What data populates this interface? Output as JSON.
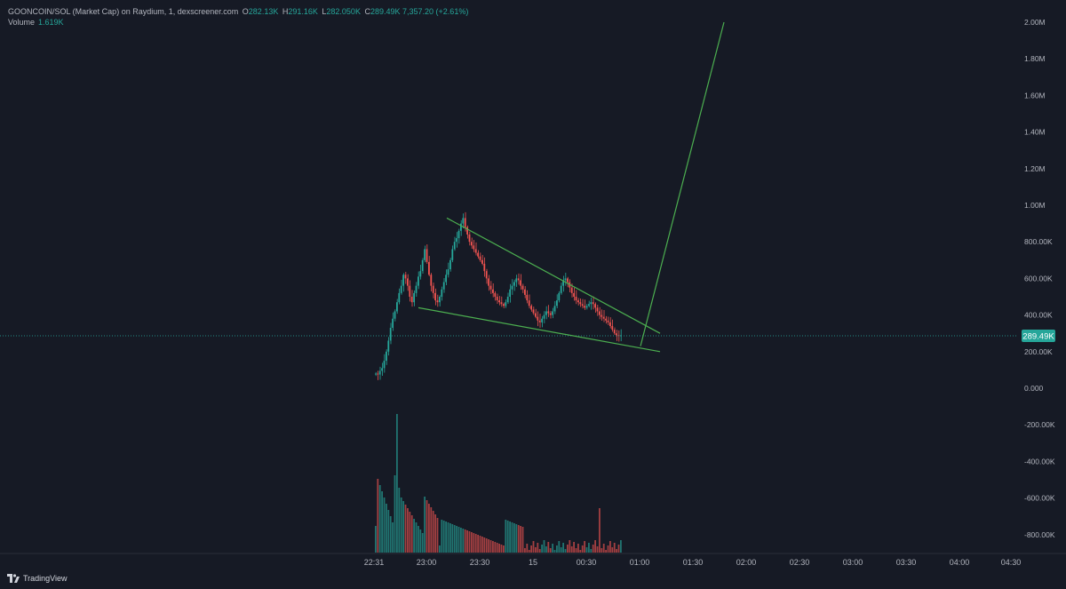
{
  "legend": {
    "symbol_line": "GOONCOIN/SOL (Market Cap) on Raydium, 1, dexscreener.com",
    "open_key": "O",
    "open": "282.13K",
    "high_key": "H",
    "high": "291.16K",
    "low_key": "L",
    "low": "282.050K",
    "close_key": "C",
    "close": "289.49K",
    "change": "7,357.20 (+2.61%)",
    "volume_label": "Volume",
    "volume_value": "1.619K"
  },
  "price_tag": "289.49K",
  "branding": "TradingView",
  "icons": {
    "logo": "tradingview-logo-icon"
  },
  "colors": {
    "background": "#161a25",
    "up": "#26a69a",
    "down": "#ef5350",
    "trendline": "#4caf50",
    "price_tag_bg": "#26a69a",
    "axis_text": "#b2b5be"
  },
  "chart_data": {
    "type": "candlestick",
    "y_axis_ticks": [
      "2.00M",
      "1.80M",
      "1.60M",
      "1.40M",
      "1.20M",
      "1.00M",
      "800.00K",
      "600.00K",
      "400.00K",
      "200.00K",
      "0.000",
      "-200.00K",
      "-400.00K",
      "-600.00K",
      "-800.00K"
    ],
    "x_axis_ticks": [
      "22:31",
      "23:00",
      "23:30",
      "15",
      "00:30",
      "01:00",
      "01:30",
      "02:00",
      "02:30",
      "03:00",
      "03:30",
      "04:00",
      "04:30"
    ],
    "x_range": [
      "22:31",
      "04:30"
    ],
    "ylim": [
      -800000,
      2000000
    ],
    "last_price": 289490,
    "interval": "1 minute",
    "trendlines": [
      {
        "name": "upper wedge line",
        "start": [
          "23:12",
          930000
        ],
        "end": [
          "01:12",
          300000
        ]
      },
      {
        "name": "lower wedge line",
        "start": [
          "22:56",
          440000
        ],
        "end": [
          "01:12",
          200000
        ]
      },
      {
        "name": "breakout projection",
        "start": [
          "01:01",
          230000
        ],
        "end": [
          "01:48",
          2000000
        ]
      }
    ],
    "grid": false,
    "volume_pane": "bottom overlay"
  }
}
